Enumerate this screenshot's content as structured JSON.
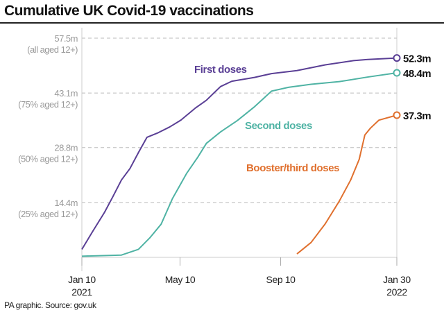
{
  "chart_data": {
    "type": "line",
    "title": "Cumulative UK Covid-19 vaccinations",
    "xlabel": "",
    "ylabel": "",
    "x_unit": "days since Jan 10 2021",
    "xlim": [
      0,
      385
    ],
    "ylim": [
      0,
      57.5
    ],
    "grid": true,
    "x_ticks": [
      {
        "day": 0,
        "label": "Jan 10",
        "sub": "2021"
      },
      {
        "day": 120,
        "label": "May 10",
        "sub": ""
      },
      {
        "day": 243,
        "label": "Sep 10",
        "sub": ""
      },
      {
        "day": 385,
        "label": "Jan 30",
        "sub": "2022"
      }
    ],
    "y_ticks": [
      {
        "value": 57.5,
        "label": "57.5m",
        "sub": "(all aged 12+)"
      },
      {
        "value": 43.1,
        "label": "43.1m",
        "sub": "(75% aged 12+)"
      },
      {
        "value": 28.8,
        "label": "28.8m",
        "sub": "(50% aged 12+)"
      },
      {
        "value": 14.4,
        "label": "14.4m",
        "sub": "(25% aged 12+)"
      }
    ],
    "series": [
      {
        "name": "First doses",
        "color": "#5a3f95",
        "end_label": "52.3m",
        "x": [
          0,
          13.8,
          27.7,
          38.1,
          48.4,
          58.8,
          69.2,
          79.6,
          93.4,
          107.3,
          121.1,
          138.4,
          152.2,
          169.5,
          183.3,
          211,
          231.8,
          262.9,
          297.5,
          332.1,
          349.4,
          385
        ],
        "values": [
          2.1,
          7.0,
          11.8,
          16.0,
          20.3,
          23.3,
          27.5,
          31.5,
          32.7,
          34.2,
          36.0,
          39.1,
          41.2,
          44.8,
          46.2,
          47.2,
          48.2,
          49.0,
          50.5,
          51.6,
          51.9,
          52.3
        ]
      },
      {
        "name": "Second doses",
        "color": "#4fb3a4",
        "end_label": "48.4m",
        "x": [
          0,
          48.4,
          69.2,
          83,
          96.9,
          110.7,
          128,
          141.8,
          152.2,
          169.5,
          190.2,
          211,
          231.8,
          252.5,
          280.2,
          314.8,
          349.4,
          385
        ],
        "values": [
          0.3,
          0.6,
          2.1,
          5.1,
          8.7,
          15.4,
          22,
          26.3,
          29.9,
          32.9,
          35.9,
          39.5,
          43.6,
          44.6,
          45.4,
          46.1,
          47.3,
          48.4
        ]
      },
      {
        "name": "Booster/third doses",
        "color": "#e0702e",
        "end_label": "37.3m",
        "x": [
          262.9,
          280.2,
          297.5,
          314.8,
          328.6,
          339,
          345.9,
          352.8,
          363.2,
          385
        ],
        "values": [
          0.9,
          3.9,
          8.8,
          14.8,
          20.3,
          25.7,
          32.1,
          33.9,
          36.0,
          37.3
        ]
      }
    ],
    "series_labels_placement": "inline"
  },
  "source": "PA graphic. Source: gov.uk"
}
